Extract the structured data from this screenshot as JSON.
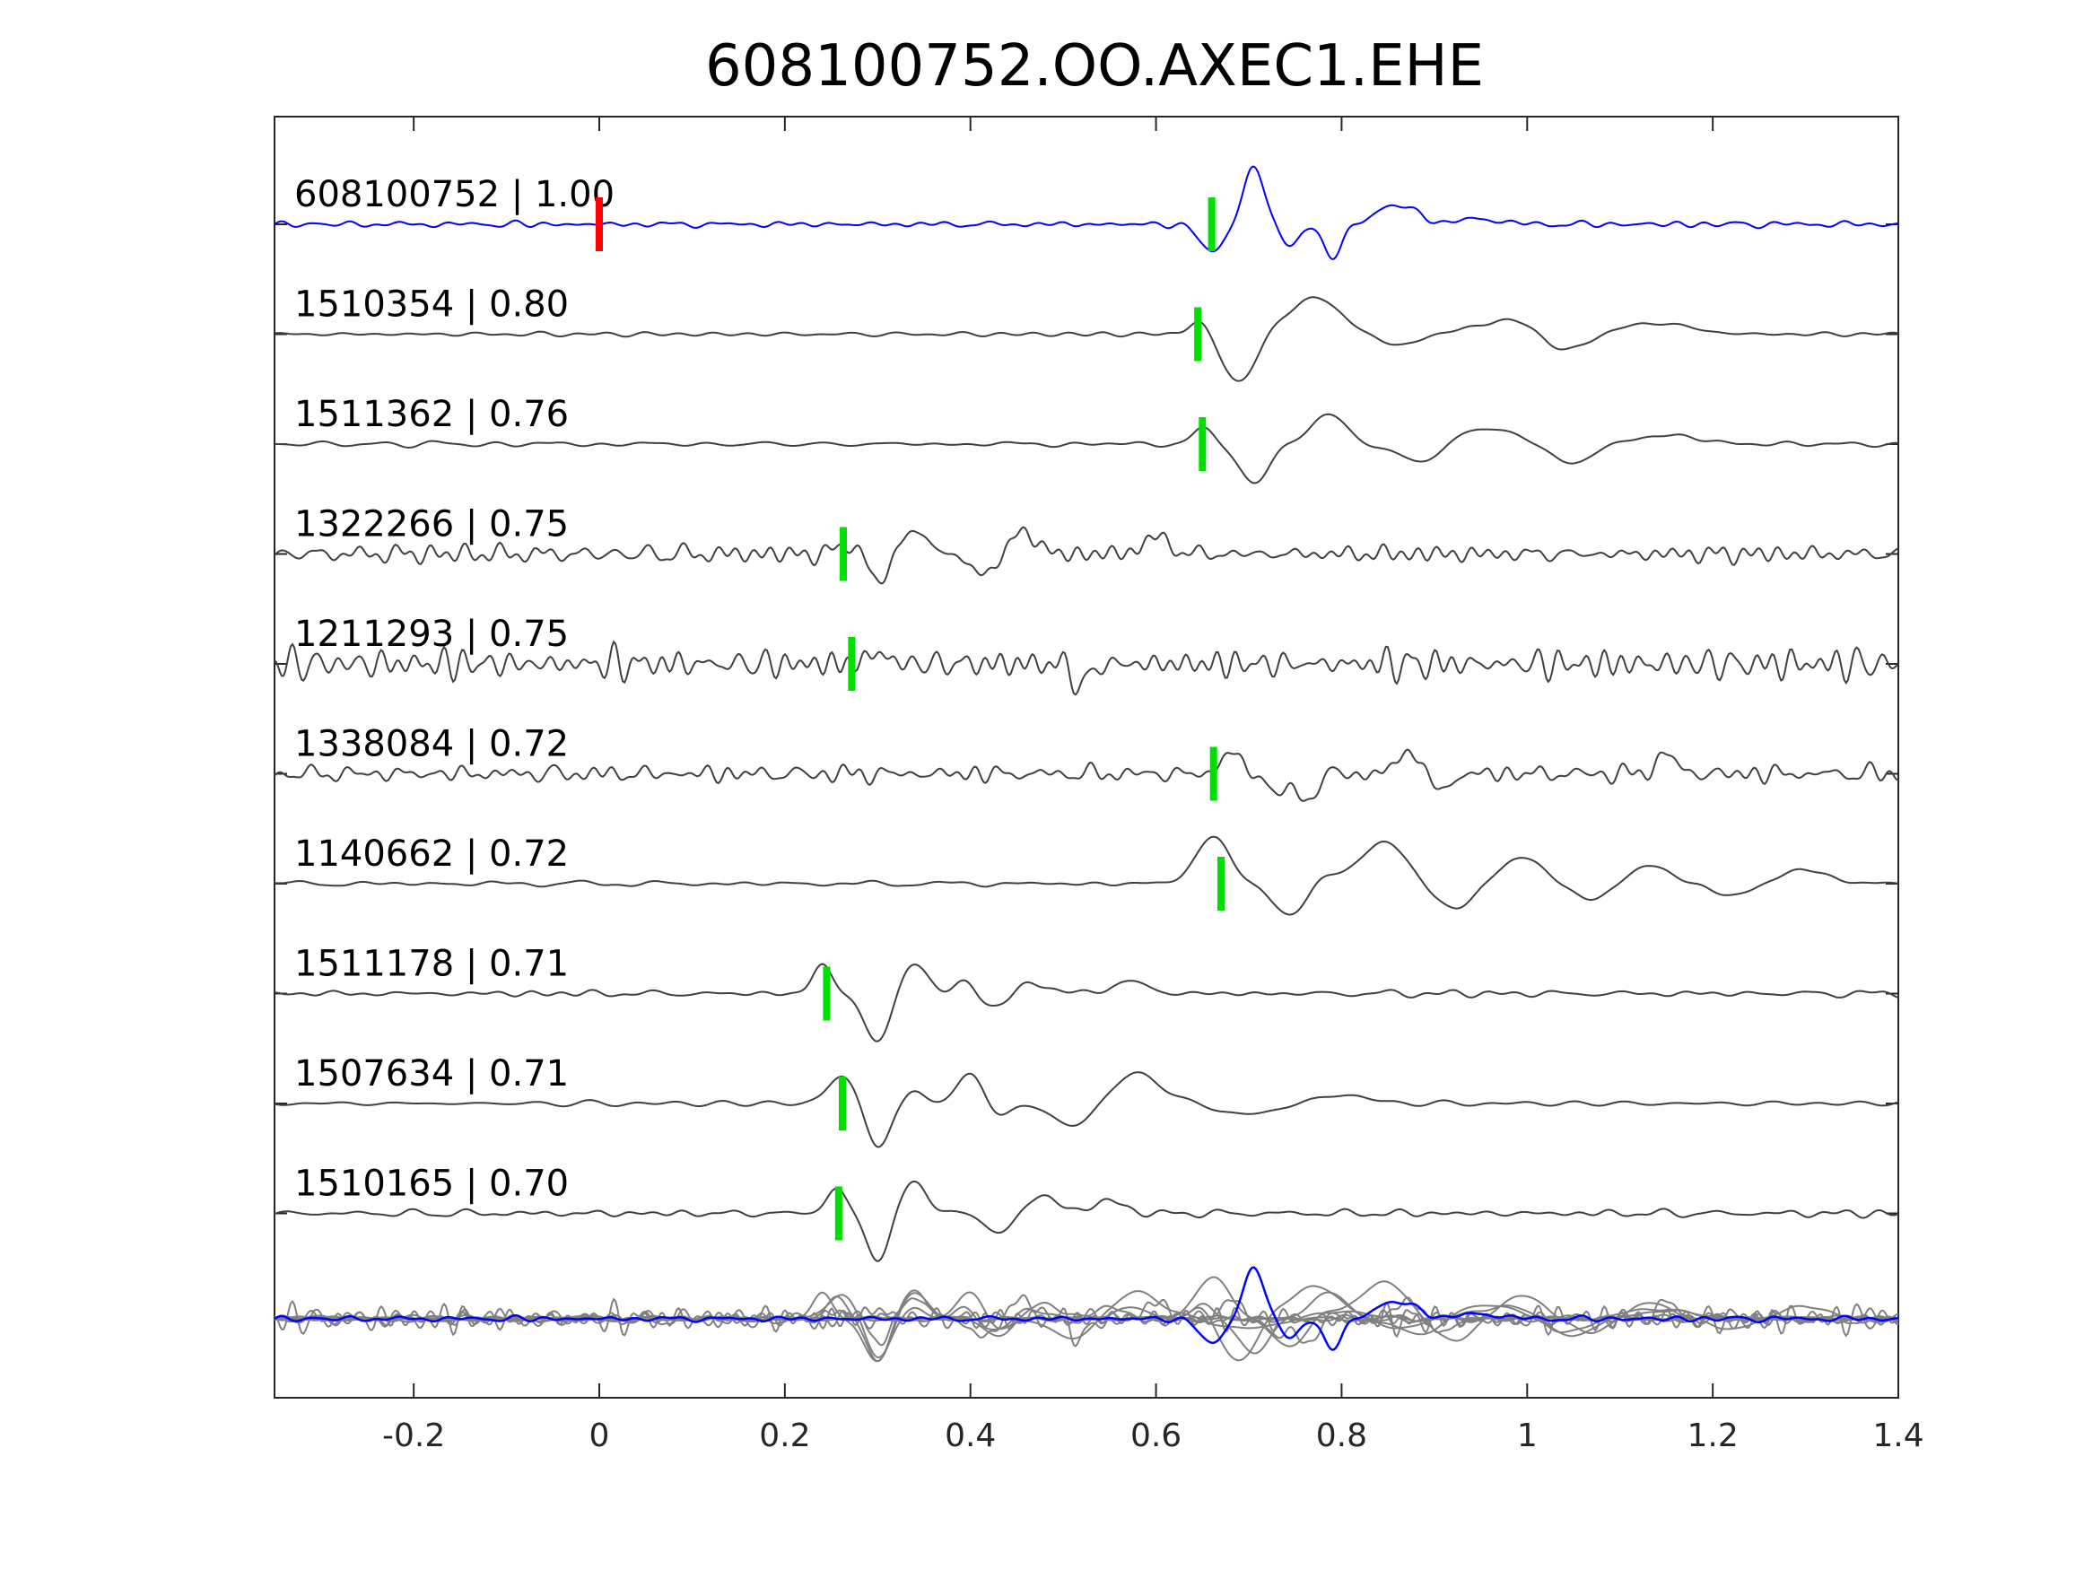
{
  "chart_data": {
    "type": "line",
    "title": "608100752.OO.AXEC1.EHE",
    "xlabel": "",
    "ylabel": "",
    "xlim": [
      -0.35,
      1.4
    ],
    "xticks": [
      -0.2,
      0,
      0.2,
      0.4,
      0.6,
      0.8,
      1,
      1.2,
      1.4
    ],
    "xtick_labels": [
      "-0.2",
      "0",
      "0.2",
      "0.4",
      "0.6",
      "0.8",
      "1",
      "1.2",
      "1.4"
    ],
    "grid": false,
    "colors": {
      "template": "#0000ff",
      "trace": "#404040",
      "overlay": "#808080",
      "template_pick": "#ff0000",
      "pick": "#00e000"
    },
    "traces": [
      {
        "label": "608100752 | 1.00",
        "id": "608100752",
        "cc": "1.00",
        "role": "template",
        "pick": 0.66,
        "origin_marker": 0.0,
        "seed": 1,
        "noise": 0.06,
        "noise_freq": 26,
        "events": [
          {
            "t": 0.66,
            "amp": -0.5,
            "w": 0.018
          },
          {
            "t": 0.705,
            "amp": 1.0,
            "w": 0.016
          },
          {
            "t": 0.745,
            "amp": -0.35,
            "w": 0.015
          },
          {
            "t": 0.79,
            "amp": -0.6,
            "w": 0.014
          },
          {
            "t": 0.86,
            "amp": 0.35,
            "w": 0.03
          },
          {
            "t": 0.95,
            "amp": 0.1,
            "w": 0.03
          }
        ]
      },
      {
        "label": "1510354 | 0.80",
        "id": "1510354",
        "cc": "0.80",
        "pick": 0.645,
        "seed": 2,
        "noise": 0.05,
        "noise_freq": 20,
        "events": [
          {
            "t": 0.645,
            "amp": 0.25,
            "w": 0.015
          },
          {
            "t": 0.69,
            "amp": -0.85,
            "w": 0.025
          },
          {
            "t": 0.77,
            "amp": 0.65,
            "w": 0.04
          },
          {
            "t": 0.86,
            "amp": -0.2,
            "w": 0.03
          },
          {
            "t": 0.98,
            "amp": 0.25,
            "w": 0.05
          },
          {
            "t": 1.04,
            "amp": -0.35,
            "w": 0.03
          },
          {
            "t": 1.14,
            "amp": 0.2,
            "w": 0.05
          }
        ]
      },
      {
        "label": "1511362 | 0.76",
        "id": "1511362",
        "cc": "0.76",
        "pick": 0.65,
        "seed": 3,
        "noise": 0.05,
        "noise_freq": 20,
        "events": [
          {
            "t": 0.65,
            "amp": 0.3,
            "w": 0.015
          },
          {
            "t": 0.705,
            "amp": -0.7,
            "w": 0.022
          },
          {
            "t": 0.785,
            "amp": 0.55,
            "w": 0.025
          },
          {
            "t": 0.88,
            "amp": -0.3,
            "w": 0.03
          },
          {
            "t": 0.96,
            "amp": 0.3,
            "w": 0.035
          },
          {
            "t": 1.05,
            "amp": -0.4,
            "w": 0.025
          },
          {
            "t": 1.15,
            "amp": 0.15,
            "w": 0.05
          }
        ]
      },
      {
        "label": "1322266 | 0.75",
        "id": "1322266",
        "cc": "0.75",
        "pick": 0.263,
        "seed": 4,
        "noise": 0.18,
        "noise_freq": 38,
        "events": [
          {
            "t": 0.27,
            "amp": 0.25,
            "w": 0.012
          },
          {
            "t": 0.3,
            "amp": -0.5,
            "w": 0.015
          },
          {
            "t": 0.34,
            "amp": 0.4,
            "w": 0.02
          },
          {
            "t": 0.41,
            "amp": -0.4,
            "w": 0.015
          },
          {
            "t": 0.46,
            "amp": 0.45,
            "w": 0.015
          },
          {
            "t": 0.6,
            "amp": 0.3,
            "w": 0.02
          }
        ]
      },
      {
        "label": "1211293 | 0.75",
        "id": "1211293",
        "cc": "0.75",
        "pick": 0.272,
        "seed": 5,
        "noise": 0.28,
        "noise_freq": 40,
        "events": [
          {
            "t": 0.52,
            "amp": -0.4,
            "w": 0.012
          },
          {
            "t": 0.3,
            "amp": 0.2,
            "w": 0.015
          }
        ]
      },
      {
        "label": "1338084 | 0.72",
        "id": "1338084",
        "cc": "0.72",
        "pick": 0.662,
        "seed": 6,
        "noise": 0.16,
        "noise_freq": 40,
        "events": [
          {
            "t": 0.68,
            "amp": 0.45,
            "w": 0.012
          },
          {
            "t": 0.73,
            "amp": -0.35,
            "w": 0.012
          },
          {
            "t": 0.76,
            "amp": -0.5,
            "w": 0.015
          },
          {
            "t": 0.87,
            "amp": 0.5,
            "w": 0.012
          },
          {
            "t": 0.91,
            "amp": -0.3,
            "w": 0.012
          },
          {
            "t": 1.15,
            "amp": 0.35,
            "w": 0.015
          }
        ]
      },
      {
        "label": "1140662 | 0.72",
        "id": "1140662",
        "cc": "0.72",
        "pick": 0.67,
        "seed": 7,
        "noise": 0.05,
        "noise_freq": 20,
        "events": [
          {
            "t": 0.66,
            "amp": 0.85,
            "w": 0.025
          },
          {
            "t": 0.745,
            "amp": -0.55,
            "w": 0.025
          },
          {
            "t": 0.785,
            "amp": 0.15,
            "w": 0.02
          },
          {
            "t": 0.845,
            "amp": 0.75,
            "w": 0.035
          },
          {
            "t": 0.92,
            "amp": -0.45,
            "w": 0.03
          },
          {
            "t": 0.995,
            "amp": 0.45,
            "w": 0.035
          },
          {
            "t": 1.07,
            "amp": -0.3,
            "w": 0.03
          },
          {
            "t": 1.13,
            "amp": 0.35,
            "w": 0.03
          },
          {
            "t": 1.22,
            "amp": -0.2,
            "w": 0.03
          },
          {
            "t": 1.3,
            "amp": 0.25,
            "w": 0.035
          }
        ]
      },
      {
        "label": "1511178 | 0.71",
        "id": "1511178",
        "cc": "0.71",
        "pick": 0.245,
        "seed": 8,
        "noise": 0.06,
        "noise_freq": 22,
        "events": [
          {
            "t": 0.24,
            "amp": 0.5,
            "w": 0.015
          },
          {
            "t": 0.3,
            "amp": -0.85,
            "w": 0.02
          },
          {
            "t": 0.34,
            "amp": 0.55,
            "w": 0.02
          },
          {
            "t": 0.4,
            "amp": 0.25,
            "w": 0.02
          },
          {
            "t": 0.42,
            "amp": -0.3,
            "w": 0.02
          },
          {
            "t": 0.47,
            "amp": 0.2,
            "w": 0.02
          },
          {
            "t": 0.57,
            "amp": 0.2,
            "w": 0.03
          }
        ]
      },
      {
        "label": "1507634 | 0.71",
        "id": "1507634",
        "cc": "0.71",
        "pick": 0.262,
        "seed": 9,
        "noise": 0.05,
        "noise_freq": 20,
        "events": [
          {
            "t": 0.26,
            "amp": 0.5,
            "w": 0.02
          },
          {
            "t": 0.3,
            "amp": -0.75,
            "w": 0.018
          },
          {
            "t": 0.34,
            "amp": 0.2,
            "w": 0.015
          },
          {
            "t": 0.4,
            "amp": 0.55,
            "w": 0.02
          },
          {
            "t": 0.43,
            "amp": -0.25,
            "w": 0.018
          },
          {
            "t": 0.51,
            "amp": -0.4,
            "w": 0.03
          },
          {
            "t": 0.58,
            "amp": 0.55,
            "w": 0.035
          },
          {
            "t": 0.7,
            "amp": -0.2,
            "w": 0.04
          },
          {
            "t": 0.8,
            "amp": 0.15,
            "w": 0.04
          }
        ]
      },
      {
        "label": "1510165 | 0.70",
        "id": "1510165",
        "cc": "0.70",
        "pick": 0.258,
        "seed": 10,
        "noise": 0.07,
        "noise_freq": 25,
        "events": [
          {
            "t": 0.255,
            "amp": 0.45,
            "w": 0.015
          },
          {
            "t": 0.3,
            "amp": -0.8,
            "w": 0.018
          },
          {
            "t": 0.34,
            "amp": 0.55,
            "w": 0.02
          },
          {
            "t": 0.43,
            "amp": -0.35,
            "w": 0.02
          },
          {
            "t": 0.48,
            "amp": 0.3,
            "w": 0.025
          },
          {
            "t": 0.55,
            "amp": 0.25,
            "w": 0.02
          }
        ]
      }
    ]
  }
}
